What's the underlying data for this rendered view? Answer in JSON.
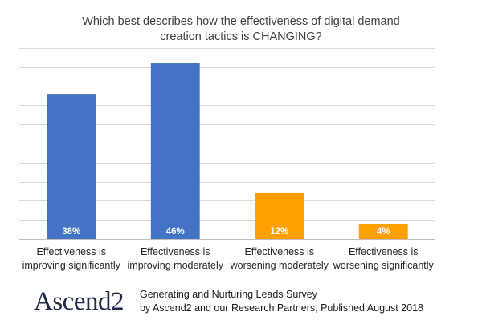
{
  "chart_data": {
    "type": "bar",
    "title_lines": [
      "Which best describes how the effectiveness of digital demand",
      "creation tactics is CHANGING?"
    ],
    "categories": [
      [
        "Effectiveness is",
        "improving significantly"
      ],
      [
        "Effectiveness is",
        "improving moderately"
      ],
      [
        "Effectiveness is",
        "worsening moderately"
      ],
      [
        "Effectiveness is",
        "worsening significantly"
      ]
    ],
    "values": [
      38,
      46,
      12,
      4
    ],
    "value_labels": [
      "38%",
      "46%",
      "12%",
      "4%"
    ],
    "colors": [
      "#4472c4",
      "#4472c4",
      "#ffa000",
      "#ffa000"
    ],
    "ylim": [
      0,
      50
    ],
    "grid": true,
    "xlabel": "",
    "ylabel": "",
    "legend": "none"
  },
  "branding": {
    "logo_text": "Ascend2"
  },
  "footer": {
    "line1": "Generating and Nurturing Leads Survey",
    "line2": "by Ascend2 and our Research Partners, Published August 2018"
  },
  "colors": {
    "grid": "#d9d9d9",
    "title_text": "#404040",
    "logo": "#1f2a44"
  }
}
